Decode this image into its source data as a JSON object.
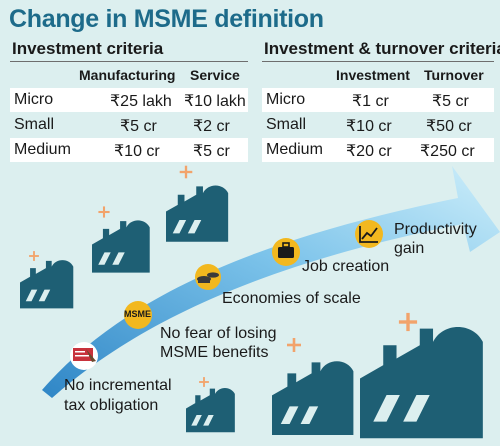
{
  "title": "Change in MSME definition",
  "left_table": {
    "heading": "Investment criteria",
    "columns": [
      "Manufacturing",
      "Service"
    ],
    "rows": [
      {
        "label": "Micro",
        "values": [
          "₹25 lakh",
          "₹10 lakh"
        ]
      },
      {
        "label": "Small",
        "values": [
          "₹5 cr",
          "₹2 cr"
        ]
      },
      {
        "label": "Medium",
        "values": [
          "₹10 cr",
          "₹5 cr"
        ]
      }
    ]
  },
  "right_table": {
    "heading": "Investment & turnover criteria",
    "columns": [
      "Investment",
      "Turnover"
    ],
    "rows": [
      {
        "label": "Micro",
        "values": [
          "₹1 cr",
          "₹5 cr"
        ]
      },
      {
        "label": "Small",
        "values": [
          "₹10 cr",
          "₹50 cr"
        ]
      },
      {
        "label": "Medium",
        "values": [
          "₹20 cr",
          "₹250 cr"
        ]
      }
    ]
  },
  "benefits": {
    "no_tax": [
      "No incremental",
      "tax obligation"
    ],
    "no_fear": [
      "No fear of losing",
      "MSME benefits"
    ],
    "msme_badge": "MSME",
    "economies": "Economies of scale",
    "jobs": "Job creation",
    "productivity": [
      "Productivity",
      "gain"
    ]
  },
  "icons": [
    "factory-icon",
    "sparkle-icon",
    "tax-form-icon",
    "msme-badge-icon",
    "coins-icon",
    "briefcase-icon",
    "growth-chart-icon"
  ],
  "colors": {
    "background": "#dcefef",
    "title": "#1d6b8a",
    "factory": "#1e5f74",
    "arrow_start": "#2f86c6",
    "arrow_end": "#bfe6f7",
    "badge": "#f2b81f",
    "sparkle": "#f2a36b"
  }
}
